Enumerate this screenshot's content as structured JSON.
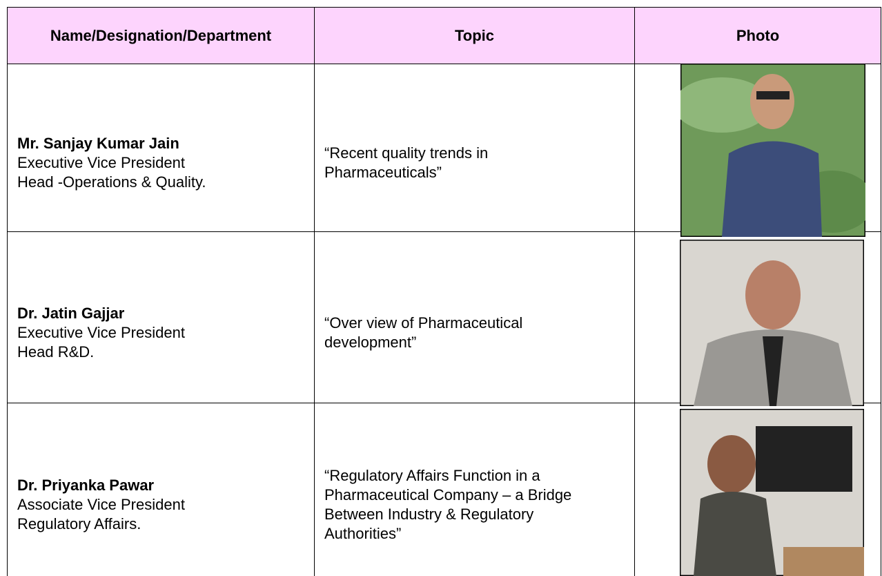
{
  "table": {
    "header": [
      "Name/Designation/Department",
      "Topic",
      "Photo"
    ],
    "rows": [
      {
        "name": "Mr. Sanjay Kumar Jain",
        "lines": [
          "Executive Vice President",
          "Head -Operations & Quality."
        ],
        "topic": "“Recent quality trends in Pharmaceuticals”"
      },
      {
        "name": "Dr. Jatin Gajjar",
        "lines": [
          "Executive Vice President",
          "Head R&D."
        ],
        "topic": "“Over view of Pharmaceutical development”"
      },
      {
        "name": "Dr. Priyanka Pawar",
        "lines": [
          "Associate Vice President",
          "Regulatory Affairs."
        ],
        "topic": "“Regulatory Affairs Function in a Pharmaceutical Company – a Bridge Between Industry & Regulatory Authorities”"
      }
    ]
  }
}
